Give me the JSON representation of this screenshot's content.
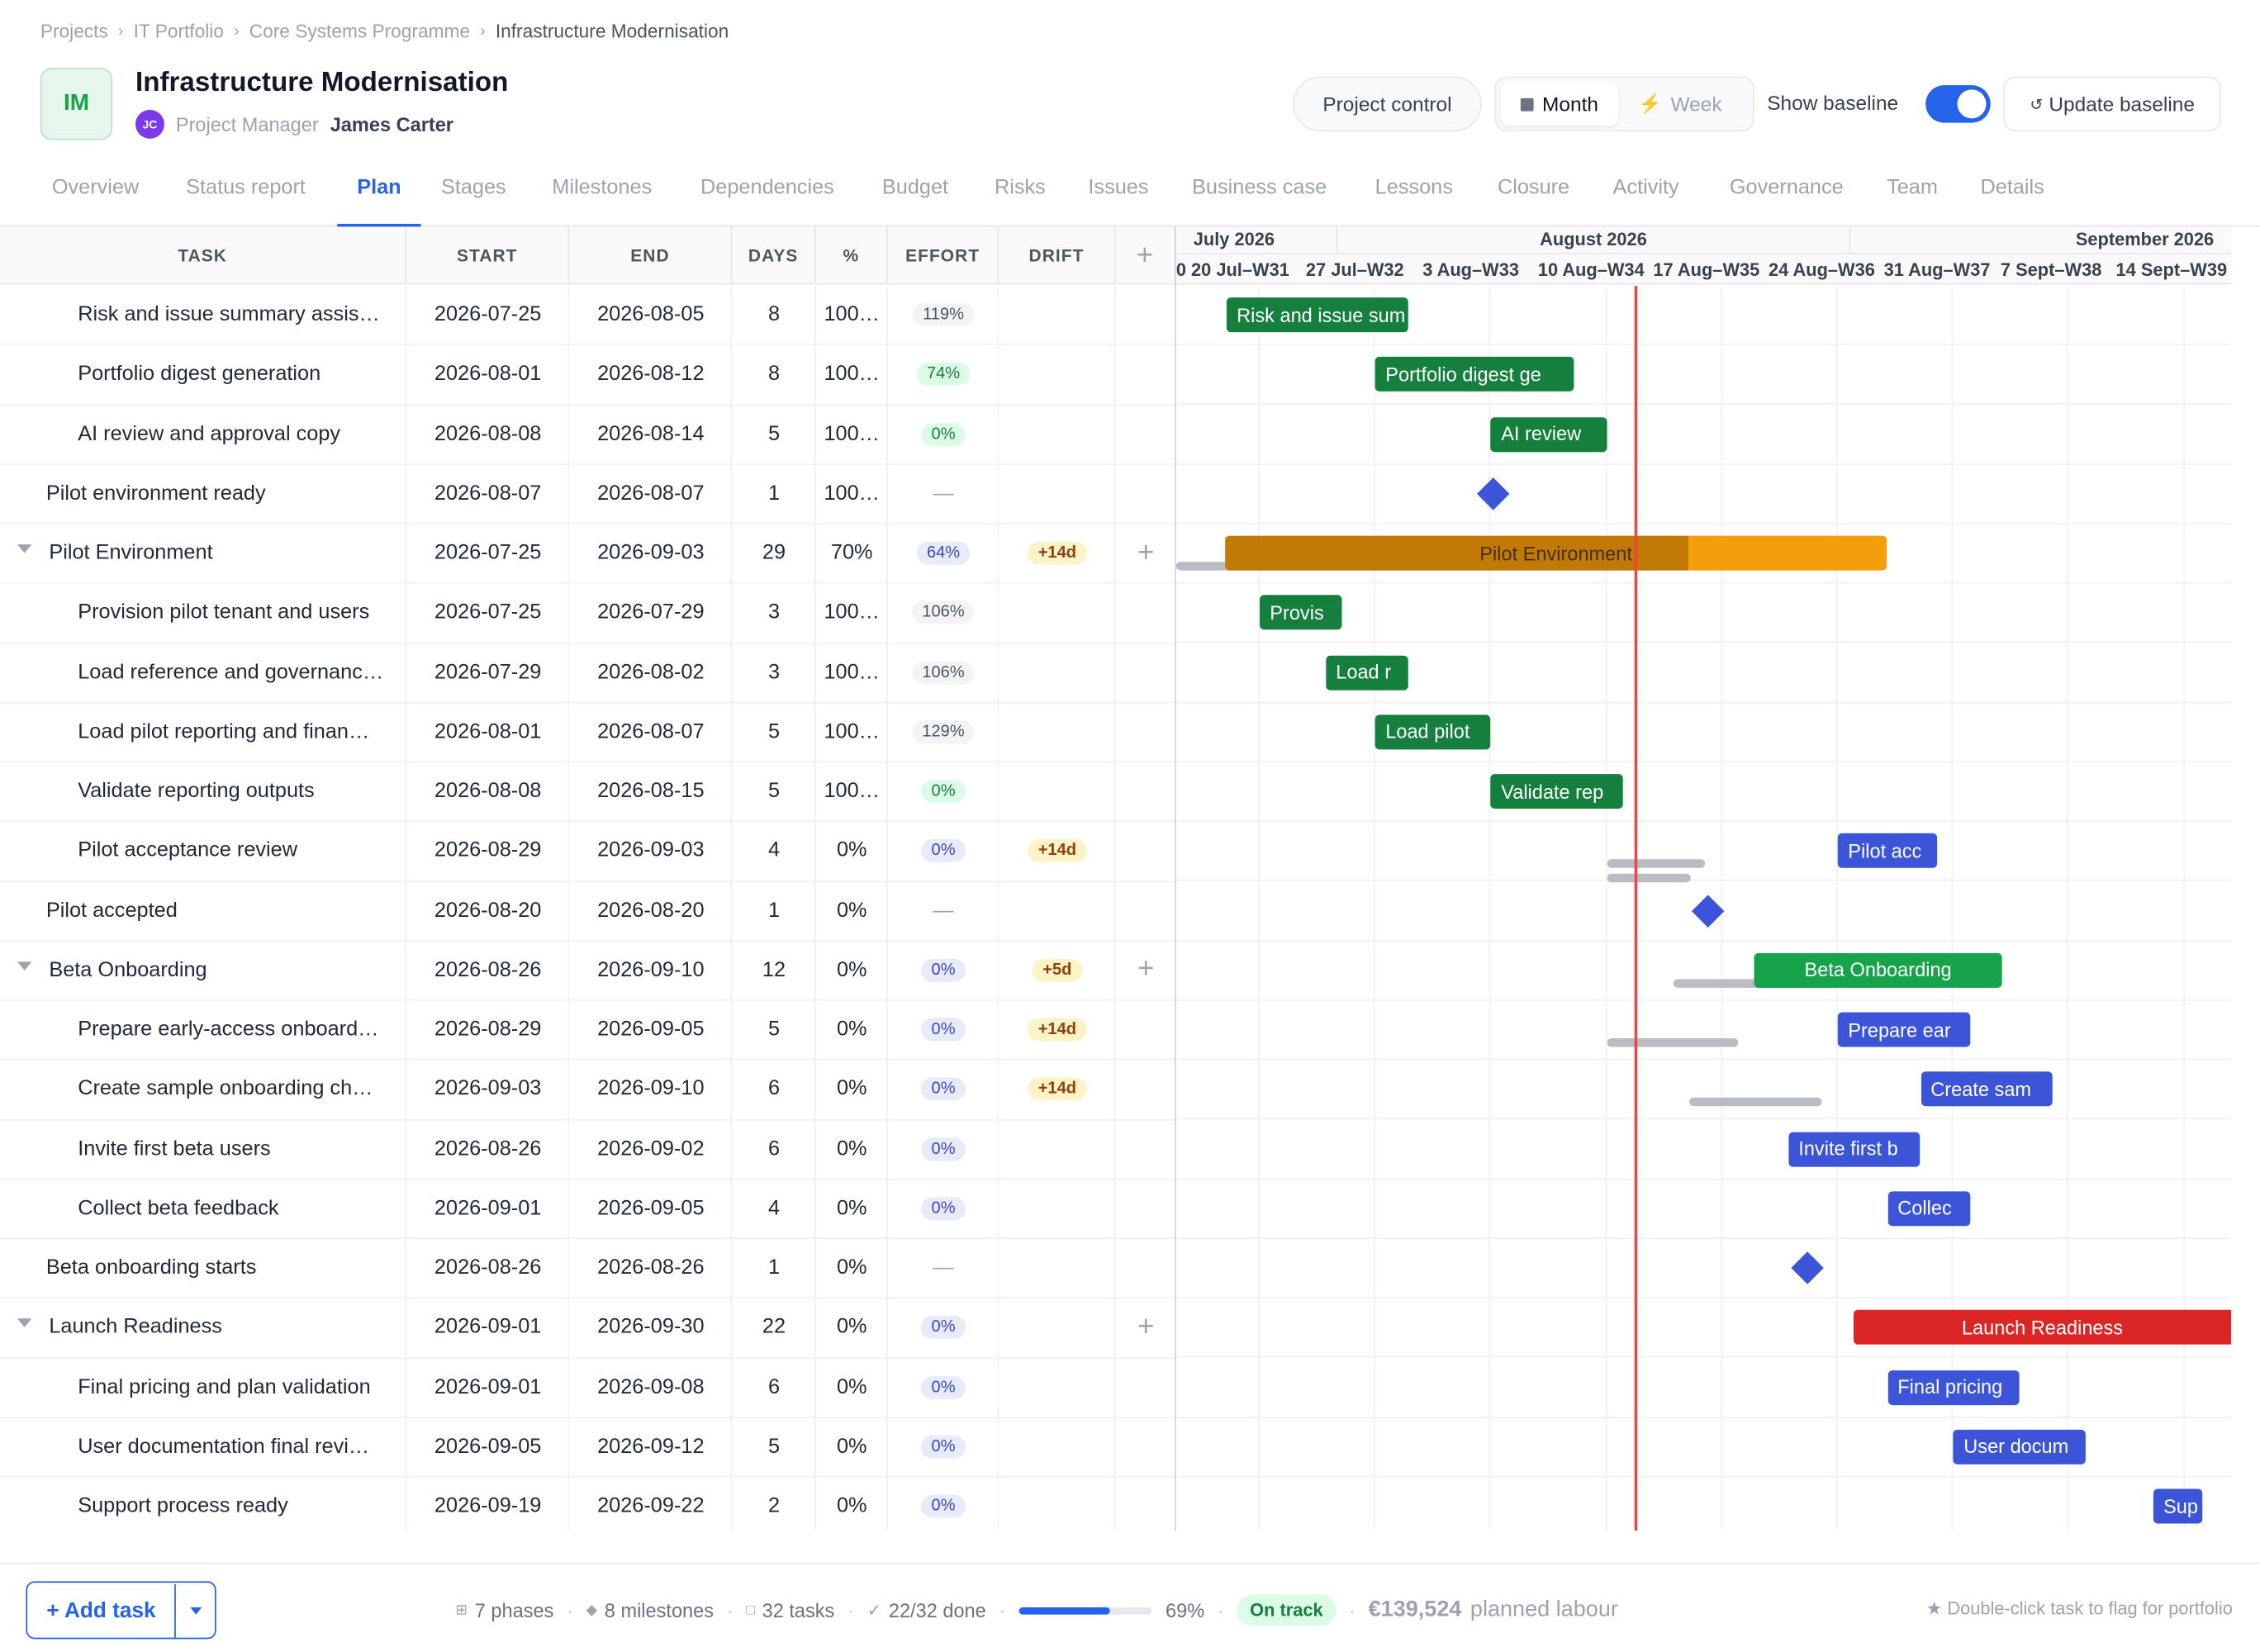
{
  "breadcrumb": {
    "items": [
      "Projects",
      "IT Portfolio",
      "Core Systems Programme"
    ],
    "current": "Infrastructure Modernisation"
  },
  "project": {
    "initials": "IM",
    "title": "Infrastructure Modernisation",
    "manager_label": "Project Manager",
    "manager_initials": "JC",
    "manager_name": "James Carter"
  },
  "toolbar": {
    "project_control": "Project control",
    "view_month": "Month",
    "view_week": "Week",
    "active_view": "Month",
    "show_baseline_label": "Show baseline",
    "show_baseline": true,
    "update_baseline": "Update baseline",
    "update_icon": "refresh-icon"
  },
  "tabs": [
    "Overview",
    "Status report",
    "Plan",
    "Stages",
    "Milestones",
    "Dependencies",
    "Budget",
    "Risks",
    "Issues",
    "Business case",
    "Lessons",
    "Closure",
    "Activity",
    "Governance",
    "Team",
    "Details"
  ],
  "active_tab": "Plan",
  "columns": {
    "task": "TASK",
    "start": "START",
    "end": "END",
    "days": "DAYS",
    "pct": "%",
    "effort": "EFFORT",
    "drift": "DRIFT",
    "add": "+"
  },
  "timeline": {
    "months": [
      "July 2026",
      "August 2026",
      "September 2026"
    ],
    "weeks": [
      "0 20 Jul–W31",
      "27 Jul–W32",
      "3 Aug–W33",
      "10 Aug–W34",
      "17 Aug–W35",
      "24 Aug–W36",
      "31 Aug–W37",
      "7 Sept–W38",
      "14 Sept–W39"
    ]
  },
  "rows": [
    {
      "task": "Risk and issue summary assis…",
      "start": "2026-07-25",
      "end": "2026-08-05",
      "days": "8",
      "pct": "100…",
      "effort": "119%",
      "effort_style": "neutral",
      "drift": "",
      "level": 2,
      "bar_label": "Risk and issue sum",
      "bar_color": "green"
    },
    {
      "task": "Portfolio digest generation",
      "start": "2026-08-01",
      "end": "2026-08-12",
      "days": "8",
      "pct": "100…",
      "effort": "74%",
      "effort_style": "green",
      "drift": "",
      "level": 2,
      "bar_label": "Portfolio digest ge",
      "bar_color": "green"
    },
    {
      "task": "AI review and approval copy",
      "start": "2026-08-08",
      "end": "2026-08-14",
      "days": "5",
      "pct": "100…",
      "effort": "0%",
      "effort_style": "green",
      "drift": "",
      "level": 2,
      "bar_label": "AI review",
      "bar_color": "green"
    },
    {
      "task": "Pilot environment ready",
      "start": "2026-08-07",
      "end": "2026-08-07",
      "days": "1",
      "pct": "100…",
      "effort": "—",
      "effort_style": "dash",
      "drift": "",
      "level": 1,
      "milestone": true
    },
    {
      "task": "Pilot Environment",
      "start": "2026-07-25",
      "end": "2026-09-03",
      "days": "29",
      "pct": "70%",
      "effort": "64%",
      "effort_style": "blue",
      "drift": "+14d",
      "level": 0,
      "phase": true,
      "bar_label": "Pilot Environment",
      "bar_color": "#f59e0b",
      "progress": 0.7
    },
    {
      "task": "Provision pilot tenant and users",
      "start": "2026-07-25",
      "end": "2026-07-29",
      "days": "3",
      "pct": "100…",
      "effort": "106%",
      "effort_style": "neutral",
      "drift": "",
      "level": 2,
      "bar_label": "Provis",
      "bar_color": "green"
    },
    {
      "task": "Load reference and governanc…",
      "start": "2026-07-29",
      "end": "2026-08-02",
      "days": "3",
      "pct": "100…",
      "effort": "106%",
      "effort_style": "neutral",
      "drift": "",
      "level": 2,
      "bar_label": "Load r",
      "bar_color": "green"
    },
    {
      "task": "Load pilot reporting and finan…",
      "start": "2026-08-01",
      "end": "2026-08-07",
      "days": "5",
      "pct": "100…",
      "effort": "129%",
      "effort_style": "neutral",
      "drift": "",
      "level": 2,
      "bar_label": "Load pilot",
      "bar_color": "green"
    },
    {
      "task": "Validate reporting outputs",
      "start": "2026-08-08",
      "end": "2026-08-15",
      "days": "5",
      "pct": "100…",
      "effort": "0%",
      "effort_style": "green",
      "drift": "",
      "level": 2,
      "bar_label": "Validate rep",
      "bar_color": "green"
    },
    {
      "task": "Pilot acceptance review",
      "start": "2026-08-29",
      "end": "2026-09-03",
      "days": "4",
      "pct": "0%",
      "effort": "0%",
      "effort_style": "blue",
      "drift": "+14d",
      "level": 2,
      "bar_label": "Pilot acc",
      "bar_color": "blue"
    },
    {
      "task": "Pilot accepted",
      "start": "2026-08-20",
      "end": "2026-08-20",
      "days": "1",
      "pct": "0%",
      "effort": "—",
      "effort_style": "dash",
      "drift": "",
      "level": 1,
      "milestone": true
    },
    {
      "task": "Beta Onboarding",
      "start": "2026-08-26",
      "end": "2026-09-10",
      "days": "12",
      "pct": "0%",
      "effort": "0%",
      "effort_style": "blue",
      "drift": "+5d",
      "level": 0,
      "phase": true,
      "bar_label": "Beta Onboarding",
      "bar_color": "#16a34a",
      "progress": 0
    },
    {
      "task": "Prepare early-access onboard…",
      "start": "2026-08-29",
      "end": "2026-09-05",
      "days": "5",
      "pct": "0%",
      "effort": "0%",
      "effort_style": "blue",
      "drift": "+14d",
      "level": 2,
      "bar_label": "Prepare ear",
      "bar_color": "blue"
    },
    {
      "task": "Create sample onboarding ch…",
      "start": "2026-09-03",
      "end": "2026-09-10",
      "days": "6",
      "pct": "0%",
      "effort": "0%",
      "effort_style": "blue",
      "drift": "+14d",
      "level": 2,
      "bar_label": "Create sam",
      "bar_color": "blue"
    },
    {
      "task": "Invite first beta users",
      "start": "2026-08-26",
      "end": "2026-09-02",
      "days": "6",
      "pct": "0%",
      "effort": "0%",
      "effort_style": "blue",
      "drift": "",
      "level": 2,
      "bar_label": "Invite first b",
      "bar_color": "blue"
    },
    {
      "task": "Collect beta feedback",
      "start": "2026-09-01",
      "end": "2026-09-05",
      "days": "4",
      "pct": "0%",
      "effort": "0%",
      "effort_style": "blue",
      "drift": "",
      "level": 2,
      "bar_label": "Collec",
      "bar_color": "blue"
    },
    {
      "task": "Beta onboarding starts",
      "start": "2026-08-26",
      "end": "2026-08-26",
      "days": "1",
      "pct": "0%",
      "effort": "—",
      "effort_style": "dash",
      "drift": "",
      "level": 1,
      "milestone": true
    },
    {
      "task": "Launch Readiness",
      "start": "2026-09-01",
      "end": "2026-09-30",
      "days": "22",
      "pct": "0%",
      "effort": "0%",
      "effort_style": "blue",
      "drift": "",
      "level": 0,
      "phase": true,
      "bar_label": "Launch Readiness",
      "bar_color": "#dc2626",
      "progress": 0
    },
    {
      "task": "Final pricing and plan validation",
      "start": "2026-09-01",
      "end": "2026-09-08",
      "days": "6",
      "pct": "0%",
      "effort": "0%",
      "effort_style": "blue",
      "drift": "",
      "level": 2,
      "bar_label": "Final pricing",
      "bar_color": "blue"
    },
    {
      "task": "User documentation final revi…",
      "start": "2026-09-05",
      "end": "2026-09-12",
      "days": "5",
      "pct": "0%",
      "effort": "0%",
      "effort_style": "blue",
      "drift": "",
      "level": 2,
      "bar_label": "User docum",
      "bar_color": "blue"
    },
    {
      "task": "Support process ready",
      "start": "2026-09-19",
      "end": "2026-09-22",
      "days": "2",
      "pct": "0%",
      "effort": "0%",
      "effort_style": "blue",
      "drift": "",
      "level": 2,
      "bar_label": "Sup",
      "bar_color": "blue"
    }
  ],
  "footer": {
    "add_task": "+ Add task",
    "phases": "7 phases",
    "milestones": "8 milestones",
    "tasks": "32 tasks",
    "done": "22/32 done",
    "progress_pct": "69%",
    "progress": 0.69,
    "status": "On track",
    "labour_amount": "€139,524",
    "labour_label": "planned labour",
    "hint": "★ Double-click task to flag for portfolio"
  }
}
